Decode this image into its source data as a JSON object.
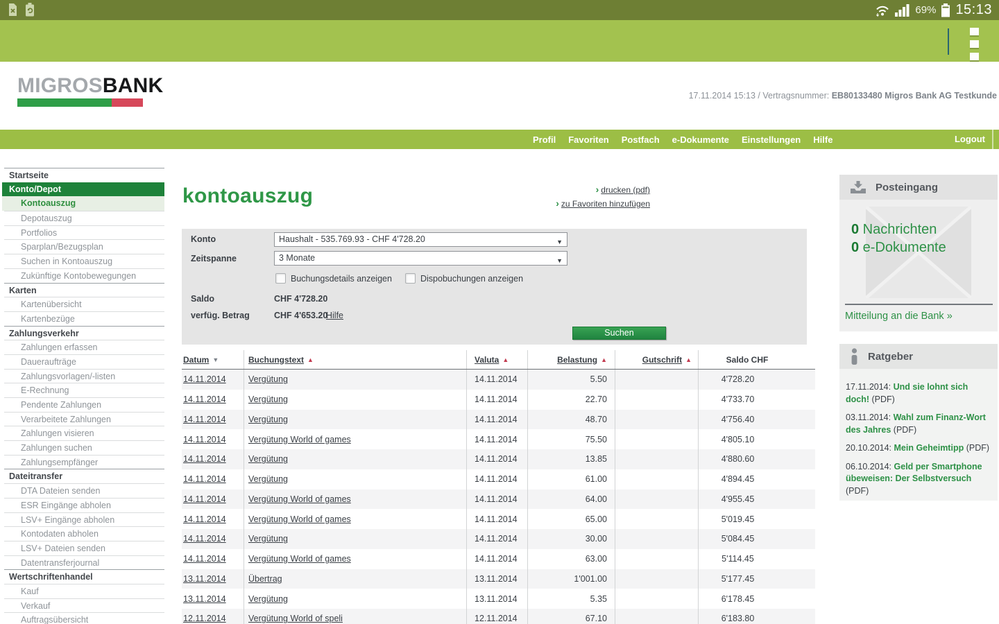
{
  "colors": {
    "status_olive": "#6e7f34",
    "band_green": "#a3c24f",
    "nav_green": "#9cbe45",
    "brand_green": "#2e9147",
    "active_green": "#1e823a",
    "logo_green": "#2f9e48",
    "logo_red": "#d6485a",
    "sort_asc_red": "#c23a4f"
  },
  "status_bar": {
    "battery_percent": "69%",
    "time": "15:13"
  },
  "header": {
    "logo_gray": "MIGROS",
    "logo_black": "BANK",
    "meta_regular": "17.11.2014 15:13 / Vertragsnummer: ",
    "meta_bold": "EB80133480 Migros Bank AG Testkunde"
  },
  "nav": {
    "items": [
      "Profil",
      "Favoriten",
      "Postfach",
      "e-Dokumente",
      "Einstellungen",
      "Hilfe"
    ],
    "logout": "Logout"
  },
  "sidebar": {
    "items": [
      {
        "label": "Startseite",
        "type": "section"
      },
      {
        "label": "Konto/Depot",
        "type": "section-active"
      },
      {
        "label": "Kontoauszug",
        "type": "item-active"
      },
      {
        "label": "Depotauszug",
        "type": "item"
      },
      {
        "label": "Portfolios",
        "type": "item"
      },
      {
        "label": "Sparplan/Bezugsplan",
        "type": "item"
      },
      {
        "label": "Suchen in Kontoauszug",
        "type": "item"
      },
      {
        "label": "Zukünftige Kontobewegungen",
        "type": "item"
      },
      {
        "label": "Karten",
        "type": "section"
      },
      {
        "label": "Kartenübersicht",
        "type": "item"
      },
      {
        "label": "Kartenbezüge",
        "type": "item"
      },
      {
        "label": "Zahlungsverkehr",
        "type": "section"
      },
      {
        "label": "Zahlungen erfassen",
        "type": "item"
      },
      {
        "label": "Daueraufträge",
        "type": "item"
      },
      {
        "label": "Zahlungsvorlagen/-listen",
        "type": "item"
      },
      {
        "label": "E-Rechnung",
        "type": "item"
      },
      {
        "label": "Pendente Zahlungen",
        "type": "item"
      },
      {
        "label": "Verarbeitete Zahlungen",
        "type": "item"
      },
      {
        "label": "Zahlungen visieren",
        "type": "item"
      },
      {
        "label": "Zahlungen suchen",
        "type": "item"
      },
      {
        "label": "Zahlungsempfänger",
        "type": "item"
      },
      {
        "label": "Dateitransfer",
        "type": "section"
      },
      {
        "label": "DTA Dateien senden",
        "type": "item"
      },
      {
        "label": "ESR Eingänge abholen",
        "type": "item"
      },
      {
        "label": "LSV+ Eingänge abholen",
        "type": "item"
      },
      {
        "label": "Kontodaten abholen",
        "type": "item"
      },
      {
        "label": "LSV+ Dateien senden",
        "type": "item"
      },
      {
        "label": "Datentransferjournal",
        "type": "item"
      },
      {
        "label": "Wertschriftenhandel",
        "type": "section"
      },
      {
        "label": "Kauf",
        "type": "item"
      },
      {
        "label": "Verkauf",
        "type": "item"
      },
      {
        "label": "Auftragsübersicht",
        "type": "item"
      }
    ]
  },
  "page": {
    "title": "kontoauszug",
    "action_chevron": "›",
    "actions": [
      {
        "label": "drucken (pdf)"
      },
      {
        "label": "zu Favoriten hinzufügen"
      }
    ]
  },
  "filter": {
    "konto_label": "Konto",
    "konto_value": "Haushalt - 535.769.93 - CHF 4'728.20",
    "zeitspanne_label": "Zeitspanne",
    "zeitspanne_value": "3 Monate",
    "select_arrow": "▼",
    "checkboxes": [
      {
        "label": "Buchungsdetails anzeigen",
        "checked": false
      },
      {
        "label": "Dispobuchungen anzeigen",
        "checked": false
      }
    ],
    "saldo_label": "Saldo",
    "saldo_value": "CHF 4'728.20",
    "verfueg_label": "verfüg. Betrag",
    "verfueg_value": "CHF 4'653.20",
    "hilfe_label": "Hilfe",
    "suchen_label": "Suchen"
  },
  "table": {
    "sort_asc_glyph": "▲",
    "sort_desc_glyph": "▼",
    "columns": [
      {
        "label": "Datum",
        "sort": "desc",
        "align": "left"
      },
      {
        "label": "Buchungstext",
        "sort": "asc",
        "align": "left"
      },
      {
        "label": "Valuta",
        "sort": "asc",
        "align": "left"
      },
      {
        "label": "Belastung",
        "sort": "asc",
        "align": "right"
      },
      {
        "label": "Gutschrift",
        "sort": "asc",
        "align": "right"
      },
      {
        "label": "Saldo CHF",
        "sort": null,
        "align": "center"
      }
    ],
    "rows": [
      [
        "14.11.2014",
        "Vergütung",
        "14.11.2014",
        "5.50",
        "",
        "4'728.20"
      ],
      [
        "14.11.2014",
        "Vergütung",
        "14.11.2014",
        "22.70",
        "",
        "4'733.70"
      ],
      [
        "14.11.2014",
        "Vergütung",
        "14.11.2014",
        "48.70",
        "",
        "4'756.40"
      ],
      [
        "14.11.2014",
        "Vergütung World of games",
        "14.11.2014",
        "75.50",
        "",
        "4'805.10"
      ],
      [
        "14.11.2014",
        "Vergütung",
        "14.11.2014",
        "13.85",
        "",
        "4'880.60"
      ],
      [
        "14.11.2014",
        "Vergütung",
        "14.11.2014",
        "61.00",
        "",
        "4'894.45"
      ],
      [
        "14.11.2014",
        "Vergütung World of games",
        "14.11.2014",
        "64.00",
        "",
        "4'955.45"
      ],
      [
        "14.11.2014",
        "Vergütung World of games",
        "14.11.2014",
        "65.00",
        "",
        "5'019.45"
      ],
      [
        "14.11.2014",
        "Vergütung",
        "14.11.2014",
        "30.00",
        "",
        "5'084.45"
      ],
      [
        "14.11.2014",
        "Vergütung World of games",
        "14.11.2014",
        "63.00",
        "",
        "5'114.45"
      ],
      [
        "13.11.2014",
        "Übertrag",
        "13.11.2014",
        "1'001.00",
        "",
        "5'177.45"
      ],
      [
        "13.11.2014",
        "Vergütung",
        "13.11.2014",
        "5.35",
        "",
        "6'178.45"
      ],
      [
        "12.11.2014",
        "Vergütung World of speli",
        "12.11.2014",
        "67.10",
        "",
        "6'183.80"
      ]
    ]
  },
  "inbox": {
    "title": "Posteingang",
    "counts": [
      {
        "count": "0",
        "label": "Nachrichten"
      },
      {
        "count": "0",
        "label": "e-Dokumente"
      }
    ],
    "link": "Mitteilung an die Bank »"
  },
  "ratgeber": {
    "title": "Ratgeber",
    "items": [
      {
        "date": "17.11.2014:",
        "title": "Und sie lohnt sich doch!",
        "suffix": "(PDF)"
      },
      {
        "date": "03.11.2014:",
        "title": "Wahl zum Finanz-Wort des Jahres",
        "suffix": "(PDF)"
      },
      {
        "date": "20.10.2014:",
        "title": "Mein Geheimtipp",
        "suffix": "(PDF)"
      },
      {
        "date": "06.10.2014:",
        "title": "Geld per Smartphone übeweisen: Der Selbstversuch",
        "suffix": "(PDF)"
      }
    ]
  }
}
